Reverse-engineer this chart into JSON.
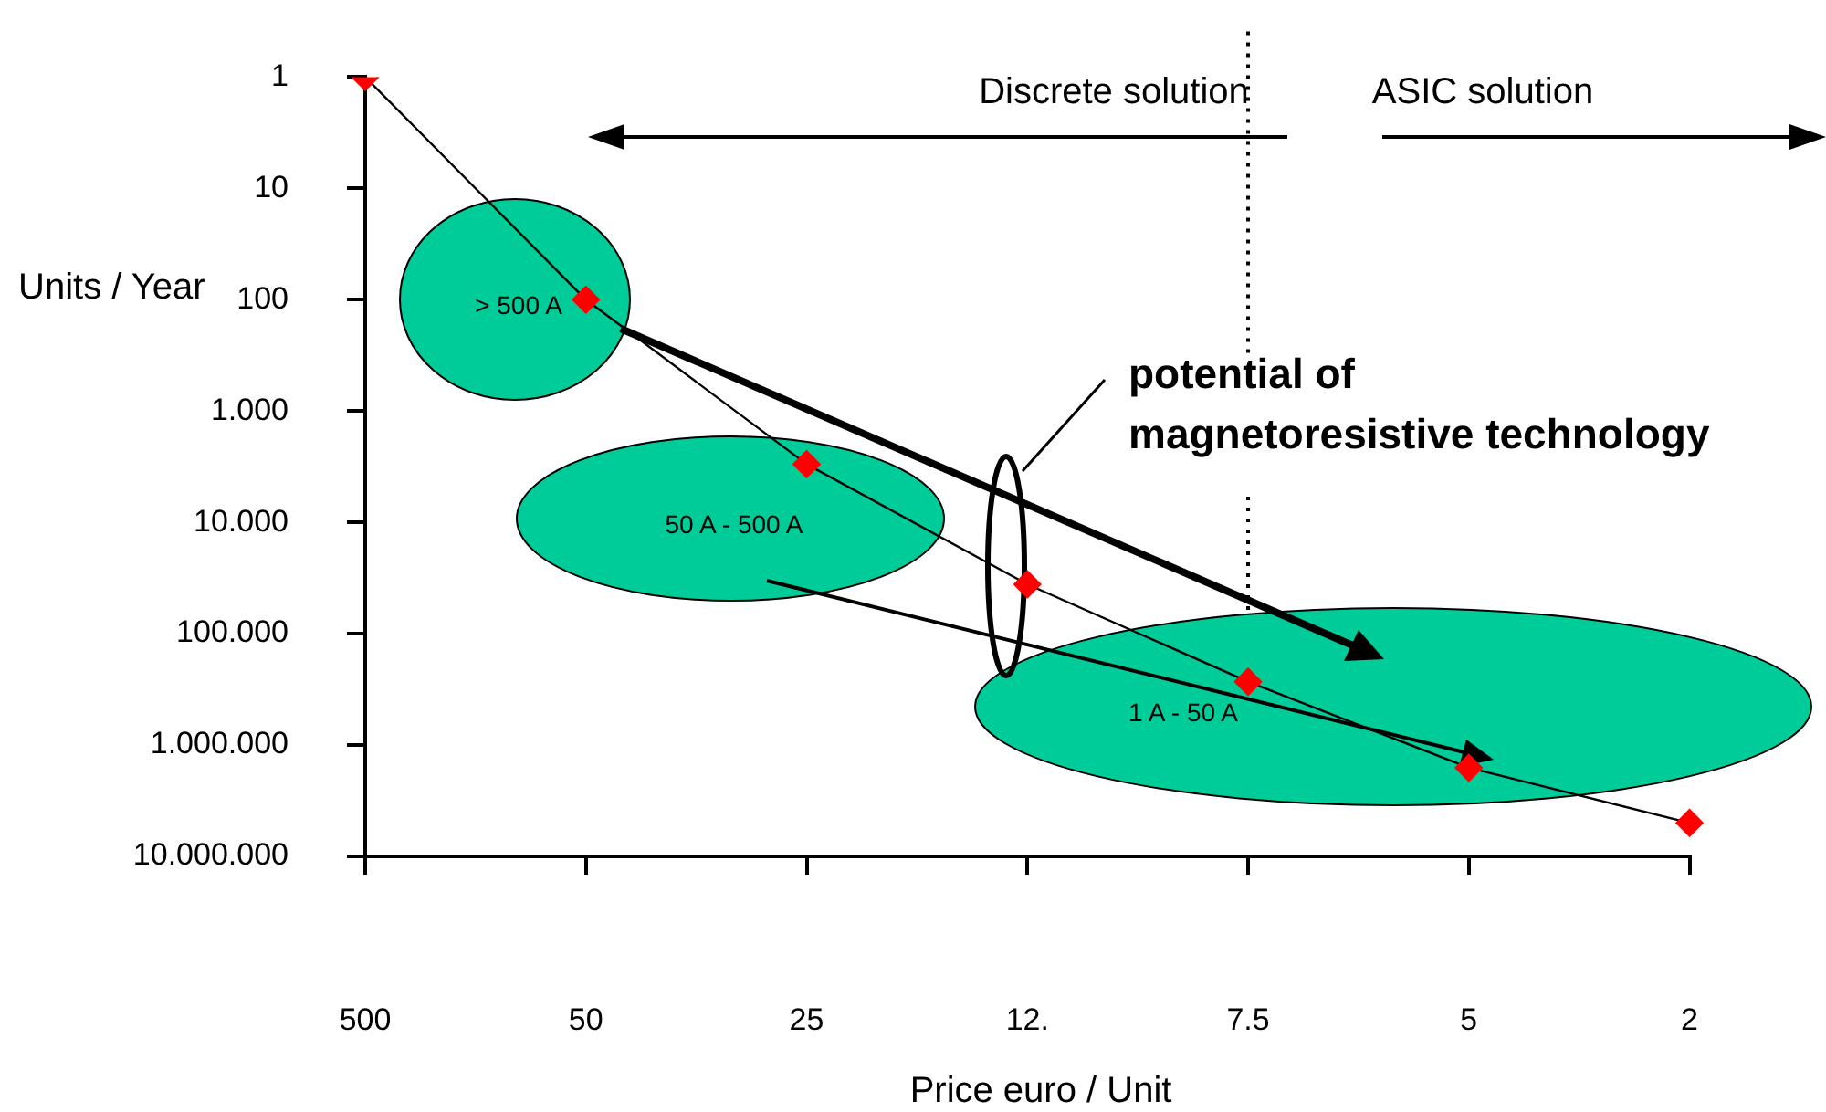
{
  "chart_data": {
    "type": "line",
    "xlabel": "Price euro / Unit",
    "ylabel": "Units / Year",
    "categories": [
      "500",
      "50",
      "25",
      "12.",
      "7.5",
      "5",
      "2"
    ],
    "series": [
      {
        "color": "#ff0000",
        "values": [
          1,
          100,
          3000,
          36000,
          270000,
          1600000,
          5000000
        ]
      }
    ],
    "marker": "diamond",
    "log": "y",
    "grid": false,
    "legend": false,
    "ylim": [
      10000000,
      1
    ],
    "yticks": [
      1,
      10,
      100,
      {
        "value": 1000,
        "label": "1.000"
      },
      {
        "value": 10000,
        "label": "10.000"
      },
      {
        "value": 100000,
        "label": "100.000"
      },
      {
        "value": 1000000,
        "label": "1.000.000"
      },
      {
        "value": 10000000,
        "label": "10.000.000"
      }
    ],
    "ref_lines": [
      {
        "axis": "x",
        "value": "7.5",
        "line_style": "dotted",
        "color": "#000000"
      }
    ],
    "annotations": [
      "Discrete solution",
      "ASIC solution",
      "potential of",
      "magnetoresistive technology",
      "> 500 A",
      "50 A - 500 A",
      "1 A - 50 A"
    ]
  }
}
